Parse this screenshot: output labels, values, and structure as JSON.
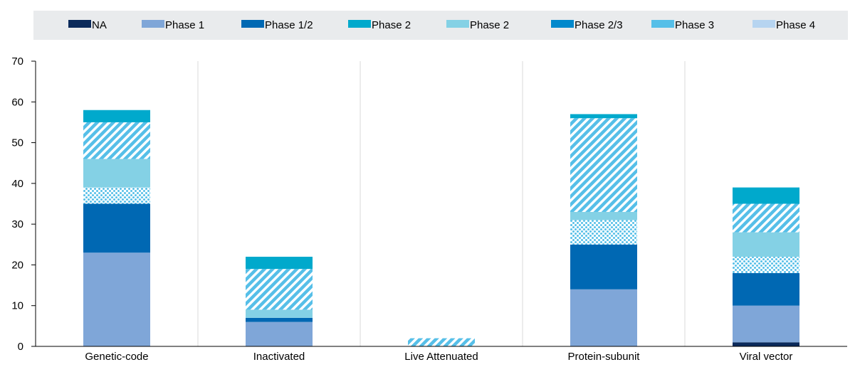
{
  "chart_data": {
    "type": "bar",
    "stacked": true,
    "title": "",
    "xlabel": "",
    "ylabel": "",
    "ylim": [
      0,
      70
    ],
    "yticks": [
      0,
      10,
      20,
      30,
      40,
      50,
      60,
      70
    ],
    "grid": "vertical separators between categories",
    "legend_position": "top",
    "categories": [
      "Genetic-code",
      "Inactivated",
      "Live Attenuated",
      "Protein-subunit",
      "Viral vector"
    ],
    "series": [
      {
        "name": "NA",
        "color": "#0b2a5b",
        "pattern": "solid",
        "values": [
          0,
          0,
          0,
          0,
          1
        ]
      },
      {
        "name": "Phase 1",
        "color": "#7fa6d8",
        "pattern": "solid",
        "values": [
          23,
          6,
          0,
          14,
          9
        ]
      },
      {
        "name": "Phase 1/2",
        "color": "#0068b3",
        "pattern": "solid",
        "values": [
          12,
          1,
          0,
          11,
          8
        ]
      },
      {
        "name": "Phase 2",
        "color": "#56bfe8",
        "pattern": "dots",
        "values": [
          4,
          0,
          0,
          6,
          4
        ]
      },
      {
        "name": "Phase 2",
        "color": "#84d1e5",
        "pattern": "solid",
        "values": [
          7,
          2,
          0,
          2,
          6
        ]
      },
      {
        "name": "Phase 2/3",
        "color": "#56bfe8",
        "pattern": "hatch",
        "values": [
          9,
          10,
          2,
          23,
          7
        ]
      },
      {
        "name": "Phase 3",
        "color": "#00a9cc",
        "pattern": "solid",
        "values": [
          3,
          3,
          0,
          1,
          4
        ]
      },
      {
        "name": "Phase 4",
        "color": "#b6d4f0",
        "pattern": "solid",
        "values": [
          0,
          0,
          0,
          0,
          0
        ]
      }
    ],
    "legend": [
      {
        "name": "NA",
        "color": "#0b2a5b"
      },
      {
        "name": "Phase 1",
        "color": "#7fa6d8"
      },
      {
        "name": "Phase 1/2",
        "color": "#0068b3"
      },
      {
        "name": "Phase 2",
        "color": "#00a9cc"
      },
      {
        "name": "Phase 2",
        "color": "#84d1e5"
      },
      {
        "name": "Phase 2/3",
        "color": "#0088cc"
      },
      {
        "name": "Phase 3",
        "color": "#56bfe8"
      },
      {
        "name": "Phase 4",
        "color": "#b6d4f0"
      }
    ]
  }
}
